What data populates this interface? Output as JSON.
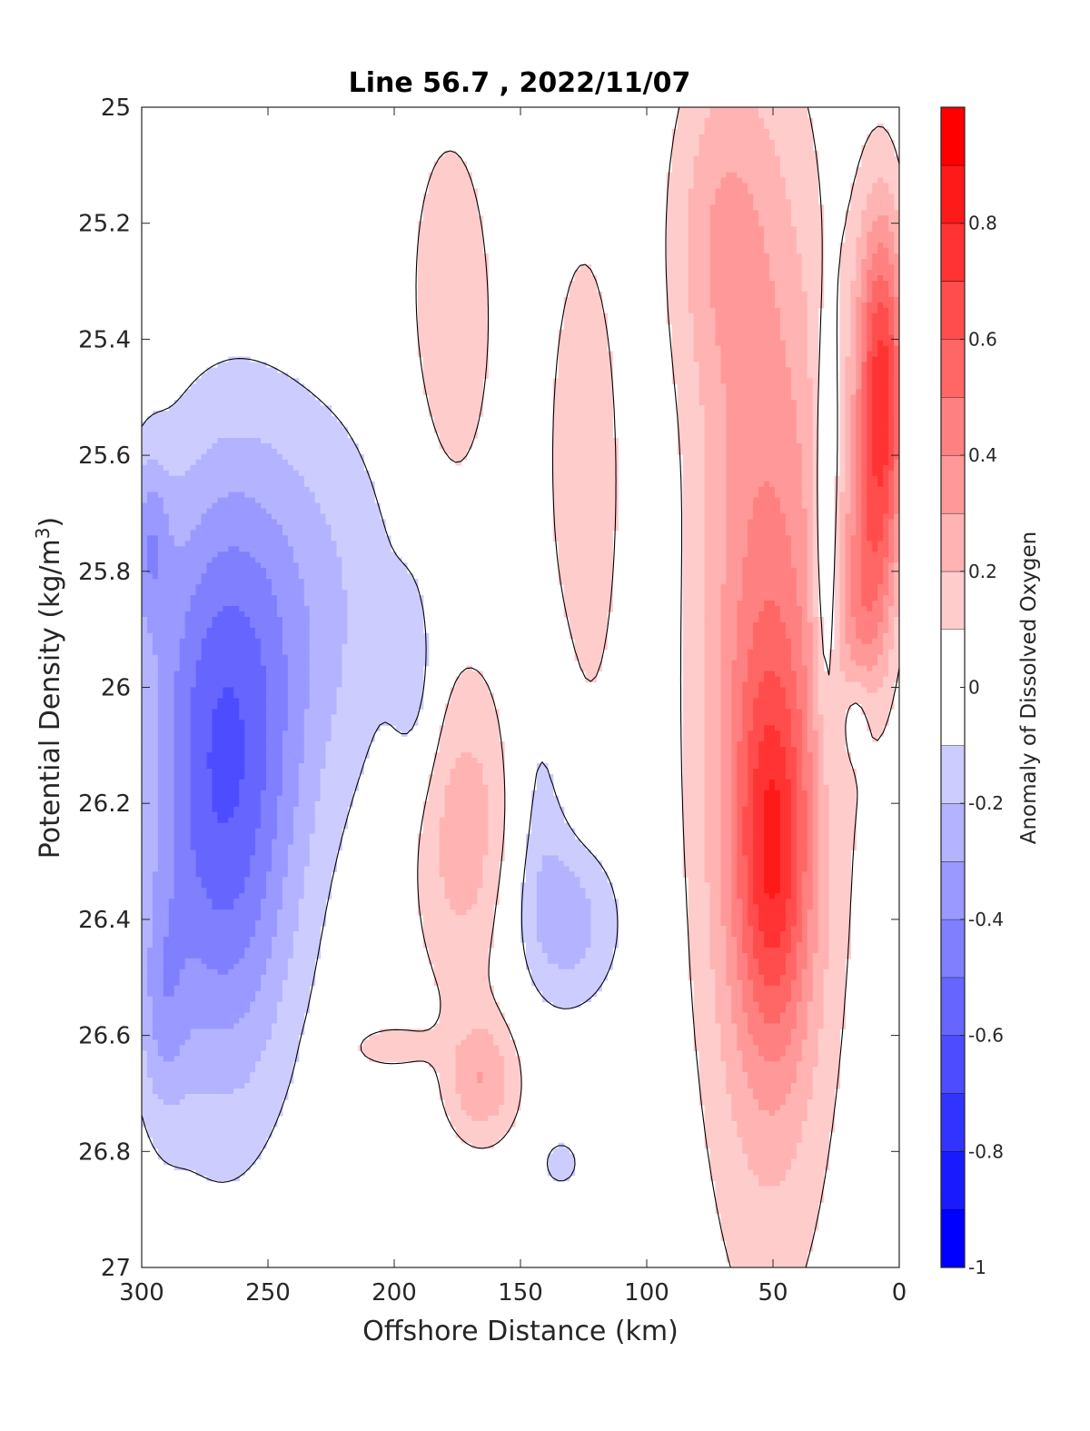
{
  "chart_data": {
    "type": "heatmap",
    "subtype": "filled-contour",
    "title": "Line 56.7 , 2022/11/07",
    "xlabel": "Offshore Distance (km)",
    "ylabel_main": "Potential Density (kg/m",
    "ylabel_sup": "3",
    "ylabel_close": ")",
    "colorbar_label": "Anomaly of Dissolved Oxygen",
    "xlim": [
      300,
      0
    ],
    "ylim": [
      25,
      27
    ],
    "x_reversed": true,
    "y_reversed": true,
    "xticks": [
      300,
      250,
      200,
      150,
      100,
      50,
      0
    ],
    "xtick_labels": [
      "300",
      "250",
      "200",
      "150",
      "100",
      "50",
      "0"
    ],
    "yticks": [
      25,
      25.2,
      25.4,
      25.6,
      25.8,
      26,
      26.2,
      26.4,
      26.6,
      26.8,
      27
    ],
    "ytick_labels": [
      "25",
      "25.2",
      "25.4",
      "25.6",
      "25.8",
      "26",
      "26.2",
      "26.4",
      "26.6",
      "26.8",
      "27"
    ],
    "clim": [
      -1,
      1
    ],
    "contour_levels": [
      -1,
      -0.9,
      -0.8,
      -0.7,
      -0.6,
      -0.5,
      -0.4,
      -0.3,
      -0.2,
      -0.1,
      0.1,
      0.2,
      0.3,
      0.4,
      0.5,
      0.6,
      0.7,
      0.8,
      0.9,
      1
    ],
    "colorbar_ticks": [
      -1,
      -0.8,
      -0.6,
      -0.4,
      -0.2,
      0,
      0.2,
      0.4,
      0.6,
      0.8
    ],
    "colorbar_tick_labels": [
      "-1",
      "-0.8",
      "-0.6",
      "-0.4",
      "-0.2",
      "0",
      "0.2",
      "0.4",
      "0.6",
      "0.8"
    ],
    "colormap": "blue-white-red",
    "colors": {
      "negative": "#0000ff",
      "zero": "#ffffff",
      "positive": "#ff0000",
      "zero_contour": "#000000"
    },
    "features": [
      {
        "name": "offshore-low",
        "center": [
          268,
          26.2
        ],
        "radius": [
          30,
          0.5
        ],
        "peak": -0.55
      },
      {
        "name": "shallow-offshore-low",
        "center": [
          238,
          25.85
        ],
        "radius": [
          55,
          0.38
        ],
        "peak": -0.2
      },
      {
        "name": "edge-low-upper",
        "center": [
          297,
          25.75
        ],
        "radius": [
          8,
          0.15
        ],
        "peak": -0.25
      },
      {
        "name": "edge-low-lower",
        "center": [
          292,
          26.55
        ],
        "radius": [
          10,
          0.2
        ],
        "peak": -0.2
      },
      {
        "name": "small-low",
        "center": [
          192,
          25.98
        ],
        "radius": [
          9,
          0.18
        ],
        "peak": -0.15
      },
      {
        "name": "mid-low",
        "center": [
          132,
          26.4
        ],
        "radius": [
          22,
          0.16
        ],
        "peak": -0.28
      },
      {
        "name": "mid-low-upper",
        "center": [
          142,
          26.15
        ],
        "radius": [
          12,
          0.22
        ],
        "peak": -0.15
      },
      {
        "name": "deep-low",
        "center": [
          134,
          26.82
        ],
        "radius": [
          9,
          0.05
        ],
        "peak": -0.15
      },
      {
        "name": "coastal-low",
        "center": [
          17,
          26.05
        ],
        "radius": [
          6,
          0.08
        ],
        "peak": -0.15
      },
      {
        "name": "upper-mid-high",
        "center": [
          178,
          25.4
        ],
        "radius": [
          22,
          0.45
        ],
        "peak": 0.17
      },
      {
        "name": "mid-high",
        "center": [
          172,
          26.25
        ],
        "radius": [
          22,
          0.3
        ],
        "peak": 0.27
      },
      {
        "name": "deep-mid-high",
        "center": [
          165,
          26.68
        ],
        "radius": [
          15,
          0.11
        ],
        "peak": 0.27
      },
      {
        "name": "small-deep-high",
        "center": [
          203,
          26.62
        ],
        "radius": [
          17,
          0.04
        ],
        "peak": 0.16
      },
      {
        "name": "column-high",
        "center": [
          125,
          25.65
        ],
        "radius": [
          18,
          0.55
        ],
        "peak": 0.16
      },
      {
        "name": "nearshore-band-high",
        "center": [
          52,
          26.0
        ],
        "radius": [
          28,
          0.9
        ],
        "peak": 0.45
      },
      {
        "name": "nearshore-core-high",
        "center": [
          50,
          26.3
        ],
        "radius": [
          14,
          0.32
        ],
        "peak": 0.44
      },
      {
        "name": "surface-nearshore-high",
        "center": [
          72,
          25.2
        ],
        "radius": [
          20,
          0.3
        ],
        "peak": 0.2
      },
      {
        "name": "coastal-surface-high",
        "center": [
          7,
          25.5
        ],
        "radius": [
          10,
          0.32
        ],
        "peak": 0.75
      },
      {
        "name": "coastal-plume-high",
        "center": [
          14,
          25.85
        ],
        "radius": [
          10,
          0.2
        ],
        "peak": 0.3
      },
      {
        "name": "coastal-gap-low",
        "center": [
          29,
          25.75
        ],
        "radius": [
          5,
          0.35
        ],
        "peak": -0.25
      }
    ]
  }
}
